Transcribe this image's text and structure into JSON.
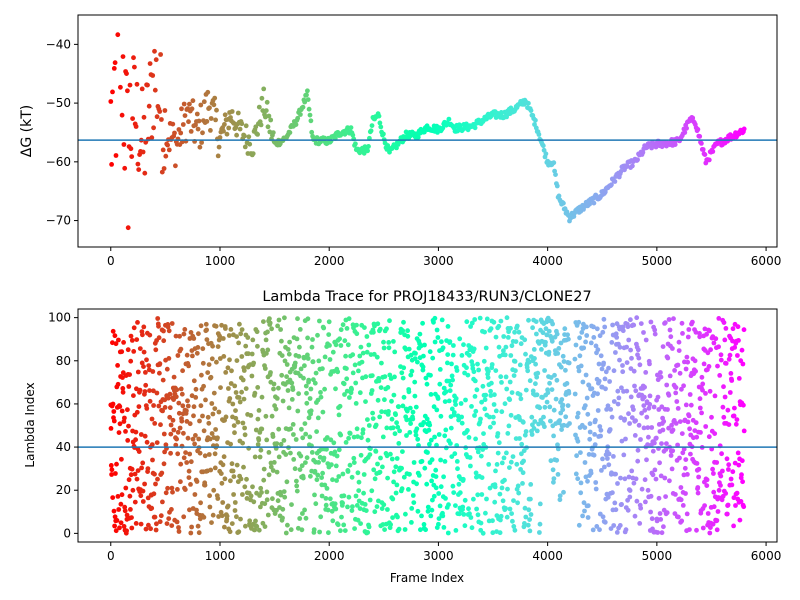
{
  "chart_data": [
    {
      "type": "scatter",
      "title": "",
      "xlabel": "",
      "ylabel": "ΔG (kT)",
      "xlim": [
        -300,
        6100
      ],
      "ylim": [
        -74.5,
        -35
      ],
      "xticks": [
        0,
        1000,
        2000,
        3000,
        4000,
        5000,
        6000
      ],
      "yticks": [
        -70,
        -60,
        -50,
        -40
      ],
      "reference_line": -56.3,
      "reference_line_color": "#1f77b4",
      "colormap": "rainbow",
      "frame_range": [
        0,
        5800
      ],
      "keypoints": [
        [
          0,
          -55
        ],
        [
          100,
          -40
        ],
        [
          150,
          -60
        ],
        [
          200,
          -50
        ],
        [
          300,
          -58
        ],
        [
          400,
          -45
        ],
        [
          500,
          -55
        ],
        [
          600,
          -57
        ],
        [
          700,
          -52
        ],
        [
          800,
          -55
        ],
        [
          900,
          -50
        ],
        [
          1000,
          -56
        ],
        [
          1100,
          -52
        ],
        [
          1200,
          -55
        ],
        [
          1300,
          -57
        ],
        [
          1400,
          -50
        ],
        [
          1500,
          -57
        ],
        [
          1600,
          -56
        ],
        [
          1700,
          -53
        ],
        [
          1800,
          -48.5
        ],
        [
          1850,
          -56.3
        ],
        [
          2000,
          -56.5
        ],
        [
          2100,
          -55
        ],
        [
          2200,
          -54.5
        ],
        [
          2250,
          -58
        ],
        [
          2350,
          -58
        ],
        [
          2400,
          -53
        ],
        [
          2450,
          -52
        ],
        [
          2500,
          -56
        ],
        [
          2550,
          -58.5
        ],
        [
          2700,
          -55.5
        ],
        [
          2800,
          -55.5
        ],
        [
          2900,
          -54
        ],
        [
          3000,
          -54.5
        ],
        [
          3100,
          -53
        ],
        [
          3150,
          -54.3
        ],
        [
          3300,
          -54
        ],
        [
          3400,
          -53
        ],
        [
          3500,
          -52
        ],
        [
          3600,
          -52
        ],
        [
          3700,
          -51
        ],
        [
          3800,
          -49.5
        ],
        [
          3900,
          -54
        ],
        [
          4000,
          -60
        ],
        [
          4050,
          -60
        ],
        [
          4100,
          -66
        ],
        [
          4200,
          -69.5
        ],
        [
          4300,
          -68
        ],
        [
          4500,
          -65.5
        ],
        [
          4700,
          -61
        ],
        [
          4800,
          -60
        ],
        [
          4900,
          -57.5
        ],
        [
          5000,
          -57
        ],
        [
          5100,
          -56.8
        ],
        [
          5200,
          -56.5
        ],
        [
          5300,
          -53
        ],
        [
          5350,
          -53
        ],
        [
          5450,
          -60
        ],
        [
          5550,
          -57
        ],
        [
          5700,
          -55.5
        ],
        [
          5800,
          -54.5
        ]
      ]
    },
    {
      "type": "scatter",
      "title": "Lambda Trace for PROJ18433/RUN3/CLONE27",
      "xlabel": "Frame Index",
      "ylabel": "Lambda Index",
      "xlim": [
        -300,
        6100
      ],
      "ylim": [
        -4,
        104
      ],
      "xticks": [
        0,
        1000,
        2000,
        3000,
        4000,
        5000,
        6000
      ],
      "yticks": [
        0,
        20,
        40,
        60,
        80,
        100
      ],
      "reference_line": 40,
      "reference_line_color": "#1f77b4",
      "colormap": "rainbow",
      "frame_range": [
        0,
        5800
      ],
      "gap": [
        4200,
        4250
      ],
      "high_band": {
        "range": [
          3850,
          4200
        ],
        "ymin": 45,
        "ymax": 100
      }
    }
  ]
}
